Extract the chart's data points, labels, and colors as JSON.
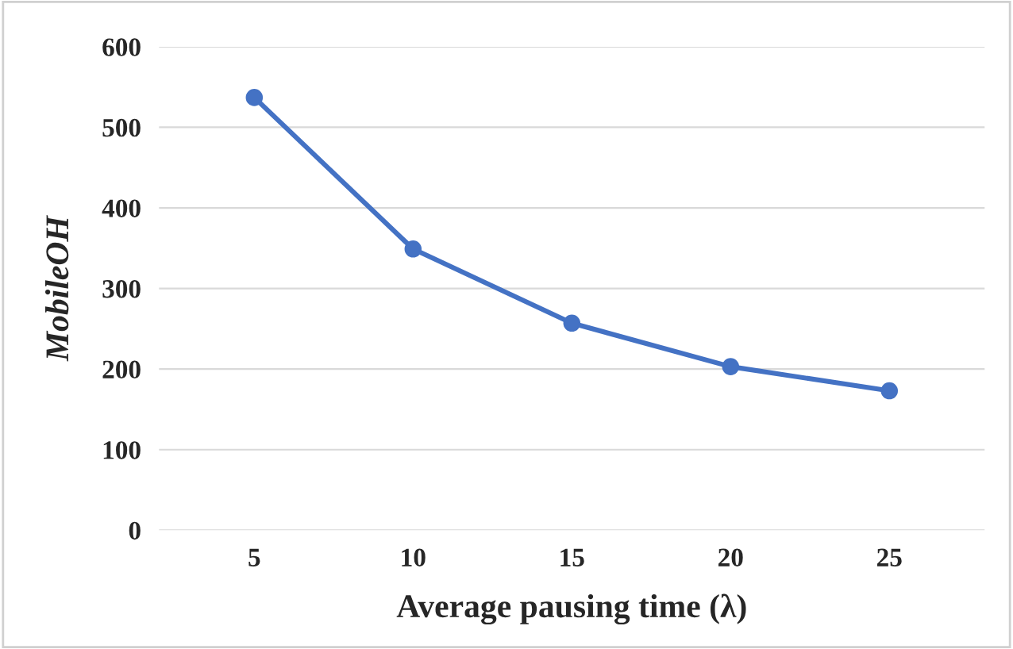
{
  "chart_data": {
    "type": "line",
    "xlabel": "Average pausing time (λ)",
    "ylabel": "MobileOH",
    "categories": [
      "5",
      "10",
      "15",
      "20",
      "25"
    ],
    "series": [
      {
        "color": "#4472c4",
        "values": [
          537,
          349,
          257,
          203,
          173
        ]
      }
    ],
    "ylim": [
      0,
      600
    ],
    "yticks": [
      0,
      100,
      200,
      300,
      400,
      500,
      600
    ],
    "grid": "y",
    "marker": "circle",
    "line_style": "solid",
    "legend": false
  }
}
